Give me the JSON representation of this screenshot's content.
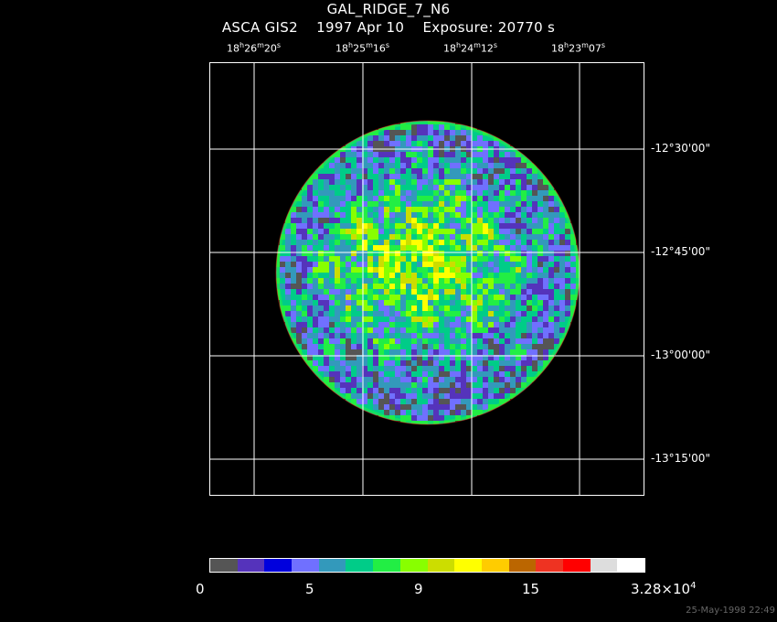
{
  "header": {
    "title": "GAL_RIDGE_7_N6",
    "subtitle": "ASCA GIS2    1997 Apr 10    Exposure: 20770 s"
  },
  "ra_labels": [
    {
      "h": "18",
      "m": "26",
      "s": "20"
    },
    {
      "h": "18",
      "m": "25",
      "s": "16"
    },
    {
      "h": "18",
      "m": "24",
      "s": "12"
    },
    {
      "h": "18",
      "m": "23",
      "s": "07"
    }
  ],
  "dec_labels": [
    "-12°30'00\"",
    "-12°45'00\"",
    "-13°00'00\"",
    "-13°15'00\""
  ],
  "colorbar": {
    "colors": [
      "#555555",
      "#5533bb",
      "#0000dd",
      "#7070ff",
      "#3399bb",
      "#00cc88",
      "#22ee44",
      "#88ff00",
      "#ccdd00",
      "#ffff00",
      "#ffcc00",
      "#bb6600",
      "#ee3322",
      "#ff0000",
      "#dddddd",
      "#ffffff"
    ],
    "labels": [
      "0",
      "5",
      "9",
      "15"
    ],
    "max_label_base": "3.28×10",
    "max_label_exp": "4"
  },
  "footer": {
    "date": "25-May-1998 22:49"
  }
}
